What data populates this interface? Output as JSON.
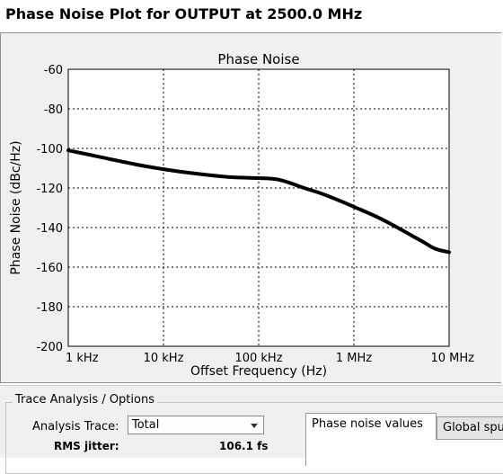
{
  "window": {
    "title": "Phase Noise Plot for OUTPUT at 2500.0 MHz"
  },
  "chart_data": {
    "type": "line",
    "title": "Phase Noise",
    "xlabel": "Offset Frequency (Hz)",
    "ylabel": "Phase Noise (dBc/Hz)",
    "x_scale": "log",
    "xlim": [
      1000,
      10000000
    ],
    "ylim": [
      -200,
      -60
    ],
    "x_ticks": [
      1000,
      10000,
      100000,
      1000000,
      10000000
    ],
    "x_tick_labels": [
      "1 kHz",
      "10 kHz",
      "100 kHz",
      "1 MHz",
      "10 MHz"
    ],
    "y_ticks": [
      -60,
      -80,
      -100,
      -120,
      -140,
      -160,
      -180,
      -200
    ],
    "y_tick_labels": [
      "-60",
      "-80",
      "-100",
      "-120",
      "-140",
      "-160",
      "-180",
      "-200"
    ],
    "grid": true,
    "series": [
      {
        "color": "#000000",
        "x": [
          1000,
          2000,
          5000,
          10000,
          20000,
          50000,
          100000,
          150000,
          200000,
          300000,
          500000,
          1000000,
          2000000,
          5000000,
          7000000,
          10000000
        ],
        "y": [
          -101,
          -104,
          -108,
          -110.5,
          -112.5,
          -114.5,
          -115,
          -115.5,
          -117,
          -120,
          -123.5,
          -129.5,
          -136,
          -146.5,
          -150.5,
          -152.5
        ]
      }
    ]
  },
  "options": {
    "group_title": "Trace Analysis / Options",
    "analysis_trace_label": "Analysis Trace:",
    "analysis_trace_value": "Total",
    "rms_jitter_label": "RMS jitter:",
    "rms_jitter_value": "106.1 fs",
    "tabs": [
      {
        "label": "Phase noise values",
        "active": true
      },
      {
        "label": "Global spu",
        "active": false
      }
    ]
  }
}
